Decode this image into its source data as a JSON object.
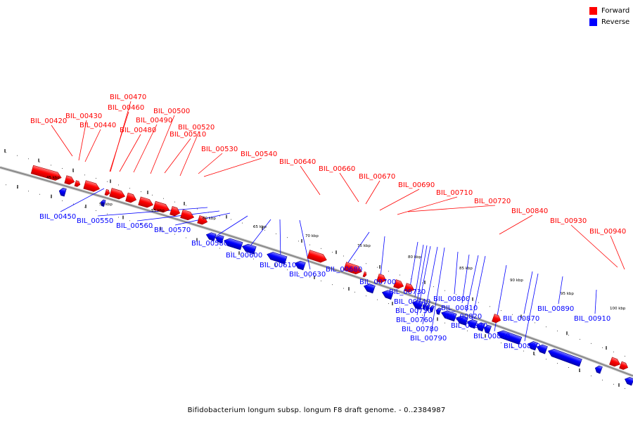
{
  "legend": [
    {
      "label": "Forward",
      "color": "#ff0000"
    },
    {
      "label": "Reverse",
      "color": "#0000ff"
    }
  ],
  "colors": {
    "forward": "#ff0000",
    "reverse": "#0000ff",
    "backbone": "#8a8a8a"
  },
  "caption": "Bifidobacterium longum subsp. longum F8 draft genome. - 0..2384987",
  "ticks": [
    {
      "label": "45 kbp"
    },
    {
      "label": "50 kbp"
    },
    {
      "label": "55 kbp"
    },
    {
      "label": "60 kbp"
    },
    {
      "label": "65 kbp"
    },
    {
      "label": "70 kbp"
    },
    {
      "label": "75 kbp"
    },
    {
      "label": "80 kbp"
    },
    {
      "label": "85 kbp"
    },
    {
      "label": "90 kbp"
    },
    {
      "label": "95 kbp"
    },
    {
      "label": "100 kbp"
    }
  ],
  "forward_genes": [
    "BIL_00420",
    "BIL_00430",
    "BIL_00440",
    "BIL_00460",
    "BIL_00470",
    "BIL_00480",
    "BIL_00490",
    "BIL_00500",
    "BIL_00510",
    "BIL_00520",
    "BIL_00530",
    "BIL_00540",
    "BIL_00640",
    "BIL_00660",
    "BIL_00670",
    "BIL_00690",
    "BIL_00710",
    "BIL_00720",
    "BIL_00840",
    "BIL_00930",
    "BIL_00940"
  ],
  "reverse_genes": [
    "BIL_00450",
    "BIL_00550",
    "BIL_00560",
    "BIL_00570",
    "BIL_00580",
    "BIL_00600",
    "BIL_00610",
    "BIL_00630",
    "BIL_00680",
    "BIL_00700",
    "BIL_00730",
    "BIL_00740",
    "BIL_00750",
    "BIL_00760",
    "BIL_00780",
    "BIL_00790",
    "BIL_00800",
    "BIL_00810",
    "BIL_00820",
    "BIL_00830",
    "BIL_00850",
    "BIL_00870",
    "BIL_00880",
    "BIL_00890",
    "BIL_00910"
  ]
}
